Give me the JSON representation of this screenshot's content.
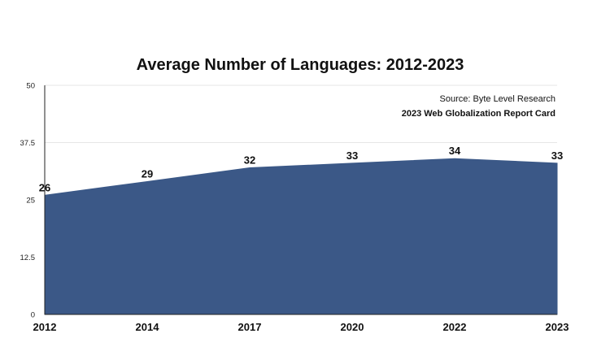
{
  "chart_data": {
    "type": "area",
    "title": "Average Number of Languages: 2012-2023",
    "xlabel": "",
    "ylabel": "",
    "categories": [
      "2012",
      "2014",
      "2017",
      "2020",
      "2022",
      "2023"
    ],
    "values": [
      26,
      29,
      32,
      33,
      34,
      33
    ],
    "data_labels": [
      "26",
      "29",
      "32",
      "33",
      "34",
      "33"
    ],
    "ylim": [
      0,
      50
    ],
    "y_ticks": [
      0,
      12.5,
      25,
      37.5,
      50
    ],
    "y_tick_labels": [
      "0",
      "12.5",
      "25",
      "37.5",
      "50"
    ],
    "grid": true,
    "legend": "none",
    "annotations": {
      "source": "Source: Byte Level Research",
      "report": "2023 Web Globalization Report Card"
    },
    "colors": {
      "area_fill": "#3b5887",
      "gridline": "#e6e6e6",
      "text": "#111111"
    }
  }
}
